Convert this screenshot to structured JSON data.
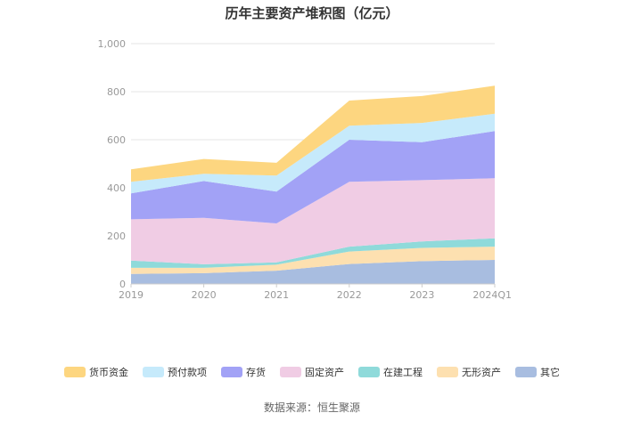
{
  "source": "数据来源：恒生聚源",
  "chart_data": {
    "type": "area",
    "stacked": true,
    "title": "历年主要资产堆积图（亿元）",
    "xlabel": "",
    "ylabel": "",
    "categories": [
      "2019",
      "2020",
      "2021",
      "2022",
      "2023",
      "2024Q1"
    ],
    "ylim": [
      0,
      1000
    ],
    "yticks": [
      "0",
      "200",
      "400",
      "600",
      "800",
      "1,000"
    ],
    "grid": true,
    "legend_position": "bottom",
    "series": [
      {
        "name": "其它",
        "color": "#a8bde0",
        "values": [
          42,
          45,
          55,
          83,
          95,
          100
        ]
      },
      {
        "name": "无形资产",
        "color": "#fde0b0",
        "values": [
          25,
          22,
          25,
          52,
          55,
          55
        ]
      },
      {
        "name": "在建工程",
        "color": "#8fdada",
        "values": [
          30,
          15,
          10,
          20,
          27,
          35
        ]
      },
      {
        "name": "固定资产",
        "color": "#f0cce4",
        "values": [
          172,
          193,
          162,
          270,
          255,
          250
        ]
      },
      {
        "name": "存货",
        "color": "#a2a2f6",
        "values": [
          108,
          153,
          132,
          175,
          158,
          196
        ]
      },
      {
        "name": "预付款项",
        "color": "#c6eafb",
        "values": [
          48,
          30,
          67,
          58,
          80,
          72
        ]
      },
      {
        "name": "货币资金",
        "color": "#fdd680",
        "values": [
          52,
          62,
          53,
          105,
          112,
          117
        ]
      }
    ]
  }
}
